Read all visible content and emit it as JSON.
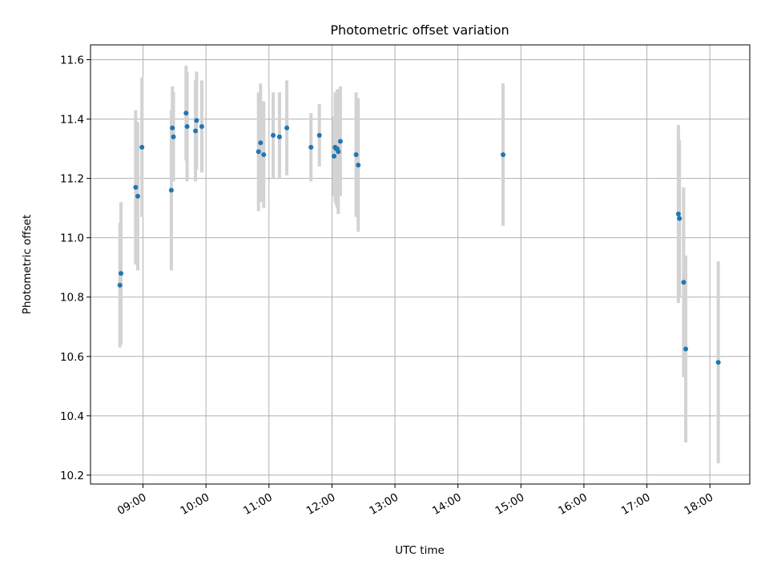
{
  "chart_data": {
    "type": "scatter",
    "title": "Photometric offset variation",
    "xlabel": "UTC time",
    "ylabel": "Photometric offset",
    "x_range": [
      "08:10",
      "18:38"
    ],
    "ylim": [
      10.17,
      11.65
    ],
    "x_ticks": [
      "09:00",
      "10:00",
      "11:00",
      "12:00",
      "13:00",
      "14:00",
      "15:00",
      "16:00",
      "17:00",
      "18:00"
    ],
    "y_ticks": [
      10.2,
      10.4,
      10.6,
      10.8,
      11.0,
      11.2,
      11.4,
      11.6
    ],
    "grid": true,
    "colors": {
      "point": "#1f77b4",
      "errorbar": "#d3d3d3",
      "grid": "#b0b0b0"
    },
    "series": [
      {
        "points": [
          {
            "t": "08:38",
            "y": 10.84,
            "lo": 10.63,
            "hi": 11.05
          },
          {
            "t": "08:39",
            "y": 10.88,
            "lo": 10.64,
            "hi": 11.12
          },
          {
            "t": "08:53",
            "y": 11.17,
            "lo": 10.91,
            "hi": 11.43
          },
          {
            "t": "08:55",
            "y": 11.14,
            "lo": 10.89,
            "hi": 11.39
          },
          {
            "t": "08:59",
            "y": 11.305,
            "lo": 11.07,
            "hi": 11.54
          },
          {
            "t": "09:27",
            "y": 11.16,
            "lo": 10.89,
            "hi": 11.43
          },
          {
            "t": "09:28",
            "y": 11.37,
            "lo": 11.24,
            "hi": 11.51
          },
          {
            "t": "09:29",
            "y": 11.34,
            "lo": 11.19,
            "hi": 11.49
          },
          {
            "t": "09:41",
            "y": 11.42,
            "lo": 11.26,
            "hi": 11.58
          },
          {
            "t": "09:42",
            "y": 11.375,
            "lo": 11.19,
            "hi": 11.56
          },
          {
            "t": "09:50",
            "y": 11.36,
            "lo": 11.19,
            "hi": 11.53
          },
          {
            "t": "09:51",
            "y": 11.395,
            "lo": 11.23,
            "hi": 11.56
          },
          {
            "t": "09:56",
            "y": 11.375,
            "lo": 11.22,
            "hi": 11.53
          },
          {
            "t": "10:50",
            "y": 11.29,
            "lo": 11.09,
            "hi": 11.49
          },
          {
            "t": "10:52",
            "y": 11.32,
            "lo": 11.12,
            "hi": 11.52
          },
          {
            "t": "10:55",
            "y": 11.28,
            "lo": 11.1,
            "hi": 11.46
          },
          {
            "t": "11:04",
            "y": 11.345,
            "lo": 11.2,
            "hi": 11.49
          },
          {
            "t": "11:10",
            "y": 11.34,
            "lo": 11.2,
            "hi": 11.49
          },
          {
            "t": "11:17",
            "y": 11.37,
            "lo": 11.21,
            "hi": 11.53
          },
          {
            "t": "11:40",
            "y": 11.305,
            "lo": 11.19,
            "hi": 11.42
          },
          {
            "t": "11:48",
            "y": 11.345,
            "lo": 11.24,
            "hi": 11.45
          },
          {
            "t": "12:02",
            "y": 11.275,
            "lo": 11.14,
            "hi": 11.41
          },
          {
            "t": "12:03",
            "y": 11.305,
            "lo": 11.12,
            "hi": 11.49
          },
          {
            "t": "12:04",
            "y": 11.3,
            "lo": 11.11,
            "hi": 11.49
          },
          {
            "t": "12:05",
            "y": 11.3,
            "lo": 11.1,
            "hi": 11.5
          },
          {
            "t": "12:06",
            "y": 11.29,
            "lo": 11.08,
            "hi": 11.5
          },
          {
            "t": "12:08",
            "y": 11.325,
            "lo": 11.14,
            "hi": 11.51
          },
          {
            "t": "12:23",
            "y": 11.28,
            "lo": 11.07,
            "hi": 11.49
          },
          {
            "t": "12:25",
            "y": 11.245,
            "lo": 11.02,
            "hi": 11.47
          },
          {
            "t": "14:43",
            "y": 11.28,
            "lo": 11.04,
            "hi": 11.52
          },
          {
            "t": "17:30",
            "y": 11.08,
            "lo": 10.78,
            "hi": 11.38
          },
          {
            "t": "17:31",
            "y": 11.065,
            "lo": 10.8,
            "hi": 11.33
          },
          {
            "t": "17:35",
            "y": 10.85,
            "lo": 10.53,
            "hi": 11.17
          },
          {
            "t": "17:37",
            "y": 10.625,
            "lo": 10.31,
            "hi": 10.94
          },
          {
            "t": "18:08",
            "y": 10.58,
            "lo": 10.24,
            "hi": 10.92
          }
        ]
      }
    ]
  }
}
